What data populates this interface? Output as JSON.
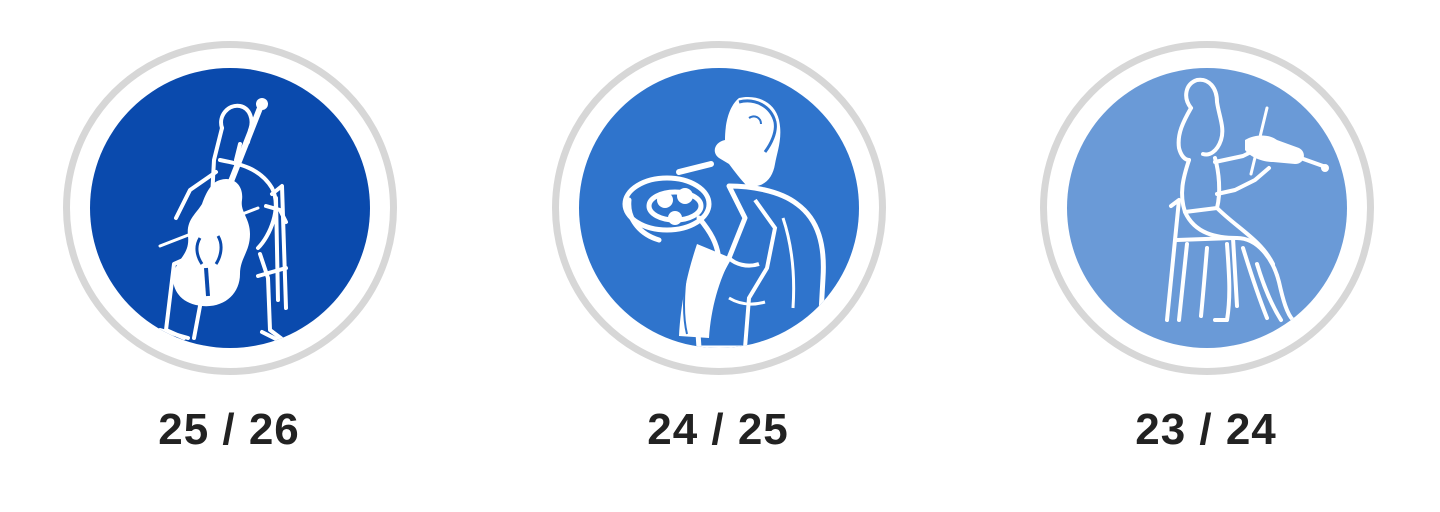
{
  "seasons": [
    {
      "label": "25 / 26",
      "color": "#0a4aad",
      "icon": "cellist-icon"
    },
    {
      "label": "24 / 25",
      "color": "#2f74cc",
      "icon": "horn-player-icon"
    },
    {
      "label": "23 / 24",
      "color": "#6a9ad7",
      "icon": "violinist-icon"
    }
  ]
}
